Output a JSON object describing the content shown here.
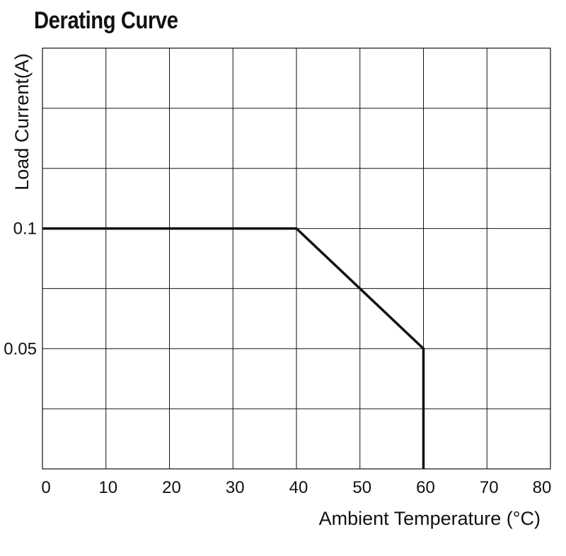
{
  "chart_data": {
    "type": "line",
    "title": "Derating Curve",
    "xlabel": "Ambient Temperature (°C)",
    "ylabel": "Load Current(A)",
    "xlim": [
      0,
      80
    ],
    "ylim": [
      0,
      0.175
    ],
    "x_ticks": [
      0,
      10,
      20,
      30,
      40,
      50,
      60,
      70,
      80
    ],
    "x_tick_labels": [
      "0",
      "10",
      "20",
      "30",
      "40",
      "50",
      "60",
      "70",
      "80"
    ],
    "y_tick_labels": [
      {
        "value": 0.1,
        "label": "0.1"
      },
      {
        "value": 0.05,
        "label": "0.05"
      }
    ],
    "grid": true,
    "y_grid_step": 0.025,
    "series": [
      {
        "color": "#111111",
        "points": [
          {
            "x": 0,
            "y": 0.1
          },
          {
            "x": 40,
            "y": 0.1
          },
          {
            "x": 60,
            "y": 0.05
          },
          {
            "x": 60,
            "y": 0
          }
        ]
      }
    ]
  }
}
